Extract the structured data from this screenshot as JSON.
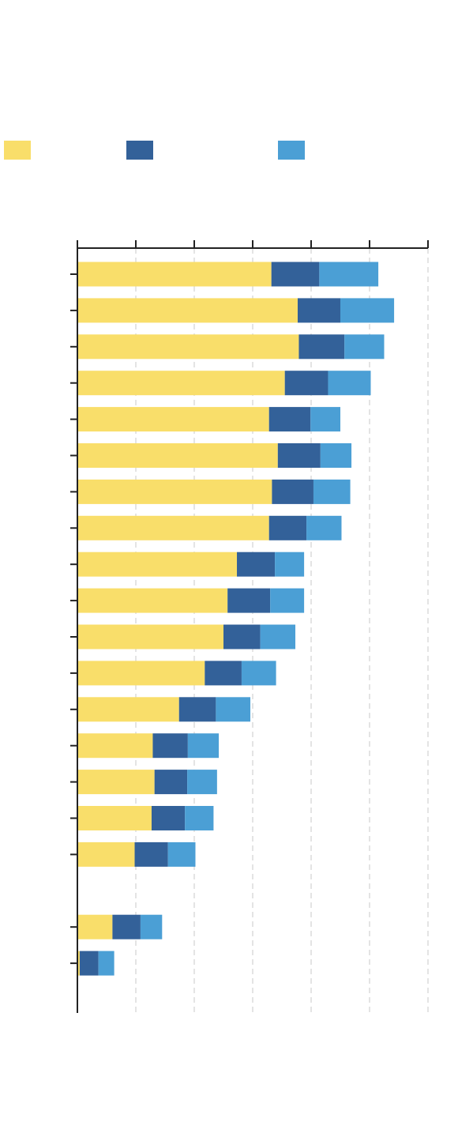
{
  "chart_data": {
    "type": "bar",
    "orientation": "horizontal",
    "stacked": true,
    "legend_position": "top",
    "grid": true,
    "grid_style": "dashed",
    "xlim": [
      0,
      6
    ],
    "categories": [
      "",
      "",
      "",
      "",
      "",
      "",
      "",
      "",
      "",
      "",
      "",
      "",
      "",
      "",
      "",
      "",
      "",
      "",
      "",
      ""
    ],
    "series": [
      {
        "color": "#F9DE6A",
        "values": [
          3.32,
          3.77,
          3.79,
          3.55,
          3.28,
          3.43,
          3.33,
          3.28,
          2.73,
          2.57,
          2.5,
          2.18,
          1.74,
          1.29,
          1.32,
          1.27,
          0.98,
          null,
          0.6,
          0.04
        ]
      },
      {
        "color": "#336199",
        "values": [
          0.82,
          0.73,
          0.78,
          0.74,
          0.71,
          0.73,
          0.71,
          0.64,
          0.65,
          0.73,
          0.63,
          0.63,
          0.63,
          0.6,
          0.56,
          0.57,
          0.57,
          null,
          0.48,
          0.32
        ]
      },
      {
        "color": "#4B9FD5",
        "values": [
          1.01,
          0.92,
          0.68,
          0.73,
          0.51,
          0.53,
          0.63,
          0.6,
          0.5,
          0.58,
          0.6,
          0.59,
          0.59,
          0.53,
          0.51,
          0.49,
          0.47,
          null,
          0.37,
          0.27
        ]
      }
    ]
  }
}
